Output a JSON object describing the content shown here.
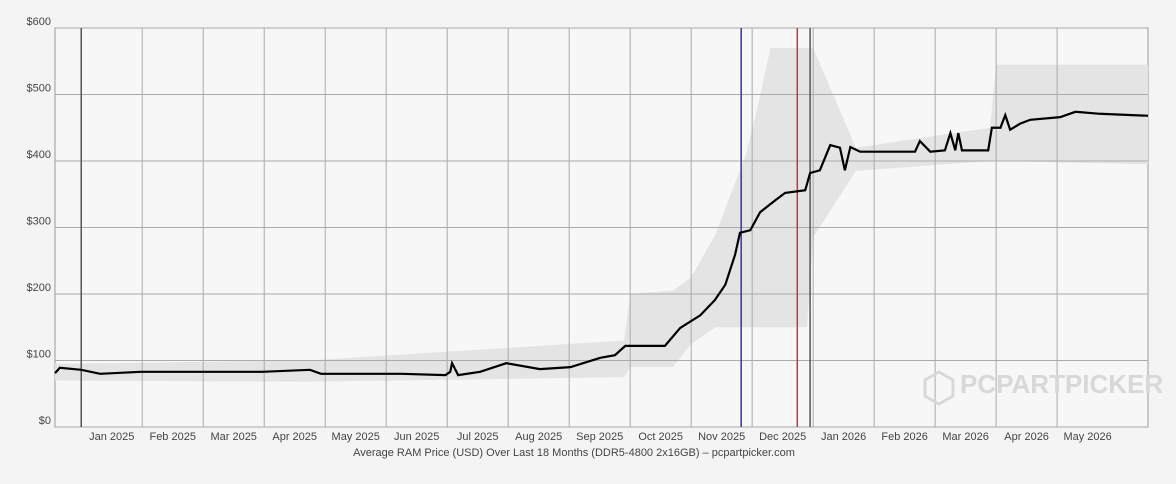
{
  "chart_data": {
    "type": "line",
    "caption": "Average RAM Price (USD) Over Last 18 Months (DDR5-4800 2x16GB) – pcpartpicker.com",
    "watermark": "PCPARTPICKER",
    "xlim": [
      -0.43,
      17.49
    ],
    "xticks": [
      {
        "value": 0,
        "label": "Jan 2025"
      },
      {
        "value": 1,
        "label": "Feb 2025"
      },
      {
        "value": 2,
        "label": "Mar 2025"
      },
      {
        "value": 3,
        "label": "Apr 2025"
      },
      {
        "value": 4,
        "label": "May 2025"
      },
      {
        "value": 5,
        "label": "Jun 2025"
      },
      {
        "value": 6,
        "label": "Jul 2025"
      },
      {
        "value": 7,
        "label": "Aug 2025"
      },
      {
        "value": 8,
        "label": "Sep 2025"
      },
      {
        "value": 9,
        "label": "Oct 2025"
      },
      {
        "value": 10,
        "label": "Nov 2025"
      },
      {
        "value": 11,
        "label": "Dec 2025"
      },
      {
        "value": 12,
        "label": "Jan 2026"
      },
      {
        "value": 13,
        "label": "Feb 2026"
      },
      {
        "value": 14,
        "label": "Mar 2026"
      },
      {
        "value": 15,
        "label": "Apr 2026"
      },
      {
        "value": 16,
        "label": "May 2026"
      }
    ],
    "ylim": [
      0,
      600
    ],
    "yticks": [
      {
        "value": 0,
        "label": "$0"
      },
      {
        "value": 100,
        "label": "$100"
      },
      {
        "value": 200,
        "label": "$200"
      },
      {
        "value": 300,
        "label": "$300"
      },
      {
        "value": 400,
        "label": "$400"
      },
      {
        "value": 500,
        "label": "$500"
      },
      {
        "value": 600,
        "label": "$600"
      }
    ],
    "grid": true,
    "band": {
      "color": "#e4e4e4",
      "x": [
        -0.43,
        3.7,
        8.9,
        9.0,
        9.7,
        10.0,
        10.4,
        10.9,
        11.1,
        11.3,
        11.9,
        12.0,
        12.7,
        14.9,
        15.0,
        17.49
      ],
      "high": [
        95,
        100,
        130,
        200,
        205,
        225,
        290,
        410,
        485,
        570,
        570,
        570,
        420,
        450,
        545,
        545
      ],
      "low": [
        70,
        68,
        75,
        90,
        90,
        125,
        150,
        150,
        150,
        150,
        150,
        285,
        385,
        400,
        400,
        395
      ]
    },
    "markers": [
      {
        "x": 0,
        "color": "#555555"
      },
      {
        "x": 10.82,
        "color": "#3333aa"
      },
      {
        "x": 11.74,
        "color": "#cc3333"
      },
      {
        "x": 11.95,
        "color": "#555555"
      }
    ],
    "series": [
      {
        "color": "#000000",
        "x": [
          -0.43,
          -0.35,
          0,
          0.31,
          0.97,
          1.95,
          2.97,
          3.75,
          3.93,
          5.25,
          5.97,
          6.05,
          6.08,
          6.18,
          6.54,
          6.97,
          7.52,
          8.02,
          8.51,
          8.75,
          8.92,
          9.57,
          9.82,
          10.15,
          10.39,
          10.56,
          10.72,
          10.8,
          10.97,
          11.13,
          11.38,
          11.54,
          11.87,
          11.95,
          12.11,
          12.28,
          12.44,
          12.52,
          12.61,
          12.77,
          13.67,
          13.75,
          13.92,
          14.16,
          14.25,
          14.33,
          14.38,
          14.44,
          14.87,
          14.93,
          15.07,
          15.15,
          15.23,
          15.39,
          15.56,
          16.05,
          16.3,
          16.7,
          17.49
        ],
        "values": [
          81,
          89,
          86,
          80,
          83,
          83,
          83,
          86,
          80,
          80,
          78,
          83,
          96,
          78,
          83,
          96,
          87,
          90,
          104,
          108,
          122,
          122,
          149,
          168,
          191,
          214,
          259,
          292,
          296,
          323,
          341,
          352,
          356,
          382,
          386,
          424,
          420,
          386,
          421,
          414,
          414,
          430,
          414,
          416,
          442,
          416,
          442,
          416,
          416,
          450,
          450,
          469,
          447,
          456,
          462,
          466,
          474,
          471,
          468
        ]
      }
    ]
  }
}
